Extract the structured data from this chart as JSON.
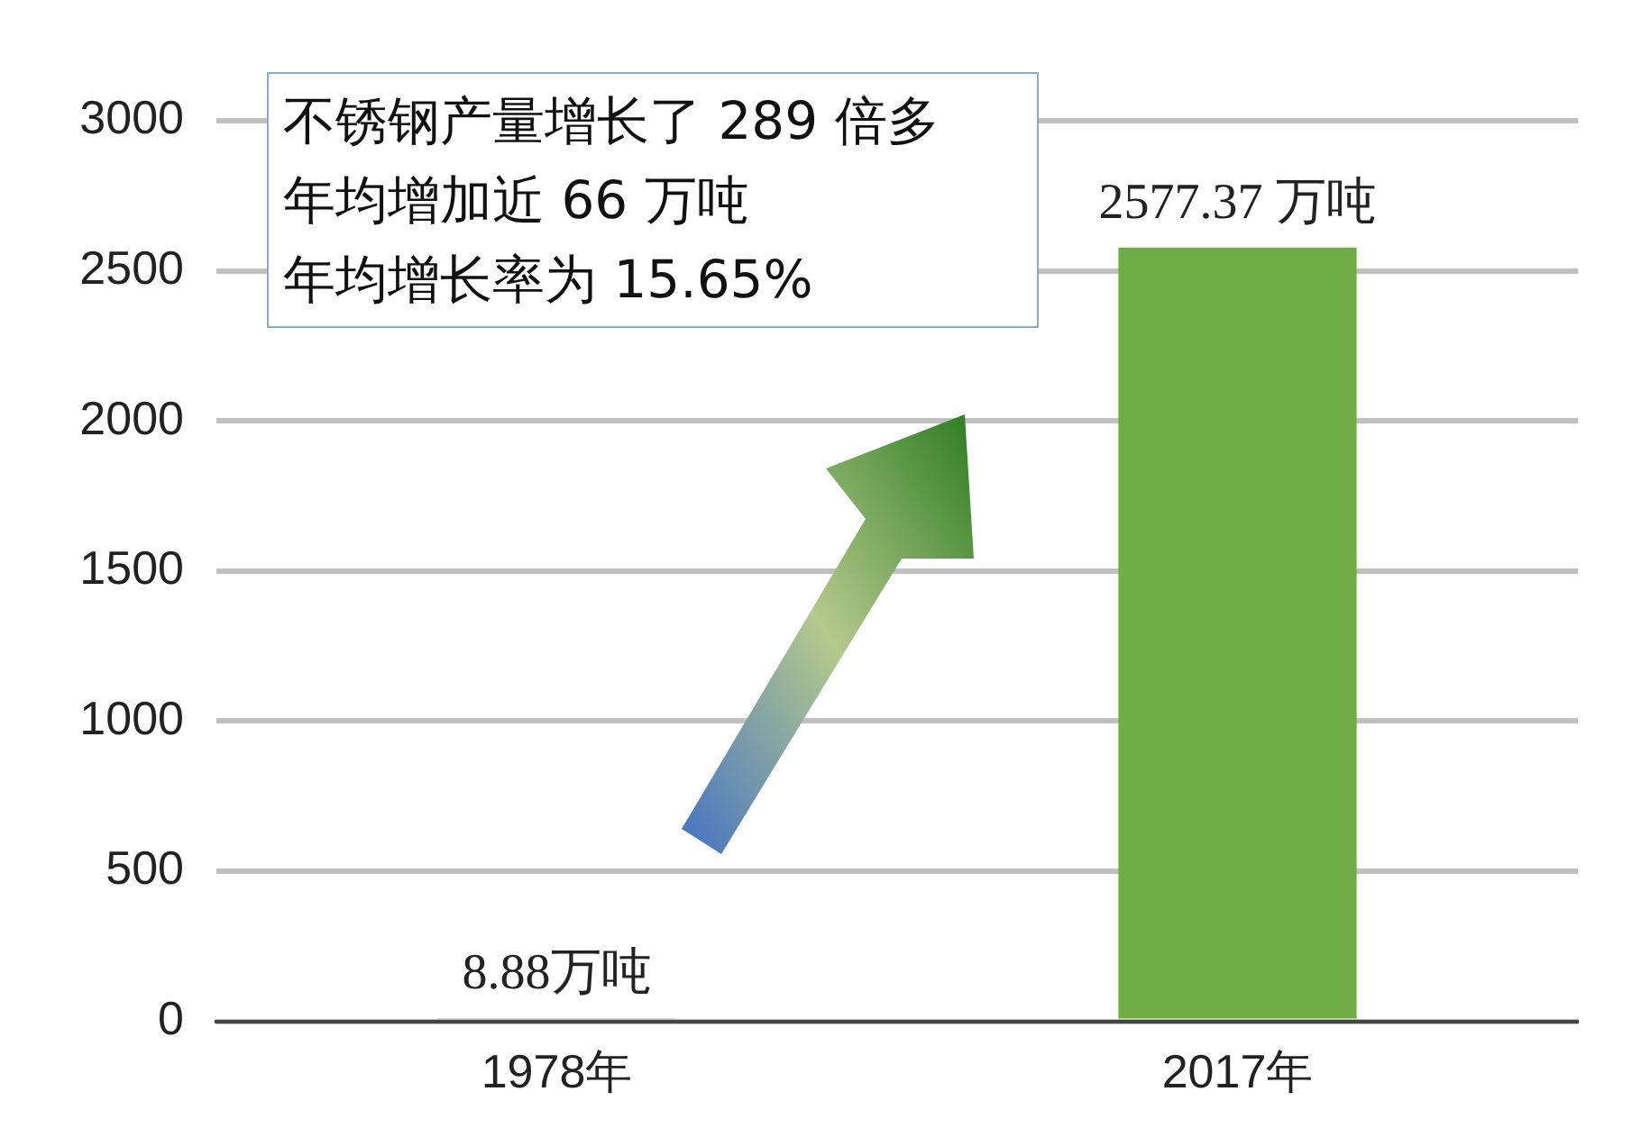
{
  "chart_data": {
    "type": "bar",
    "categories": [
      "1978年",
      "2017年"
    ],
    "values": [
      8.88,
      2577.37
    ],
    "colors": [
      "#4472c4",
      "#70ad47"
    ],
    "value_labels": [
      "8.88万吨",
      "2577.37 万吨"
    ],
    "ylim": [
      0,
      3000
    ],
    "yticks": [
      0,
      500,
      1000,
      1500,
      2000,
      2500,
      3000
    ],
    "grid": "y",
    "legend": false,
    "annotations": [
      "不锈钢产量增长了 289 倍多",
      "年均增加近 66 万吨",
      "年均增长率为 15.65%"
    ]
  }
}
